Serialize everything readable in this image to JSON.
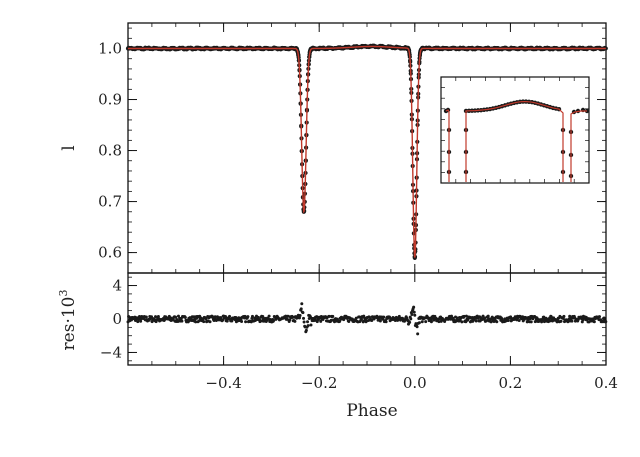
{
  "chart_data": [
    {
      "type": "line",
      "panel": "light curve",
      "ylabel": "l",
      "xlim": [
        -0.6,
        0.4
      ],
      "ylim": [
        0.56,
        1.05
      ],
      "yticks": [
        "1.0",
        "0.9",
        "0.8",
        "0.7",
        "0.6"
      ],
      "baseline": 1.0,
      "eclipses": [
        {
          "phase": -0.232,
          "min_flux": 0.68
        },
        {
          "phase": 0.0,
          "min_flux": 0.59
        }
      ],
      "series": [
        {
          "style": "observed points",
          "color": "#1a1a1a"
        },
        {
          "style": "model curve",
          "color": "#c0392b"
        }
      ],
      "inset": {
        "type": "line",
        "description_points": "zoomed out-of-eclipse region",
        "x": [
          -0.22,
          -0.2,
          -0.15,
          -0.1,
          -0.05,
          -0.02
        ],
        "y": [
          1.001,
          1.001,
          1.002,
          1.004,
          1.002,
          1.001
        ]
      }
    },
    {
      "type": "scatter",
      "panel": "residuals",
      "ylabel": "res·10",
      "ylabel_sup": "3",
      "xlabel": "Phase",
      "xlim": [
        -0.6,
        0.4
      ],
      "ylim": [
        -5.5,
        5.5
      ],
      "xticks": [
        "−0.4",
        "−0.2",
        "0.0",
        "0.2",
        "0.4"
      ],
      "yticks": [
        "4",
        "0",
        "−4"
      ],
      "color": "#1a1a1a"
    }
  ]
}
